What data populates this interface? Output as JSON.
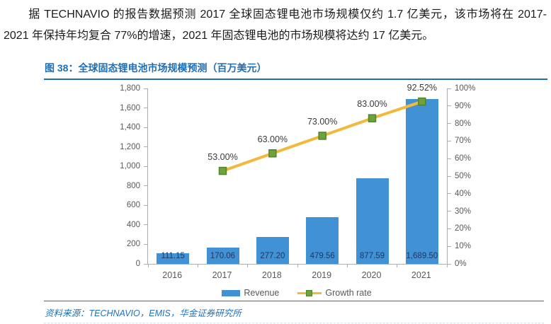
{
  "paragraph": {
    "text": "据 TECHNAVIO 的报告数据预测 2017 全球固态锂电池市场规模仅约 1.7 亿美元，该市场将在 2017-2021 年保持年均复合 77%的增速，2021 年固态锂电池的市场规模将达约 17 亿美元。"
  },
  "figure": {
    "title": "图 38：全球固态锂电池市场规模预测（百万美元）",
    "source": "资料来源：TECHNAVIO，EMIS，华金证券研究所"
  },
  "legend": {
    "revenue_label": "Revenue",
    "growth_label": "Growth rate"
  },
  "colors": {
    "accent_blue": "#1e6fb5",
    "bar": "#4191d5",
    "line": "#f2b93a",
    "marker": "#6ea33c",
    "marker_border": "#55832b",
    "axis_text": "#595959",
    "value_label": "#1f3864"
  },
  "chart_data": {
    "type": "bar",
    "subtype": "bar-line combo",
    "title": "全球固态锂电池市场规模预测（百万美元）",
    "categories": [
      "2016",
      "2017",
      "2018",
      "2019",
      "2020",
      "2021"
    ],
    "series": [
      {
        "name": "Revenue",
        "type": "bar",
        "axis": "left",
        "values": [
          111.15,
          170.06,
          277.2,
          479.56,
          877.59,
          1689.5
        ],
        "labels": [
          "111.15",
          "170.06",
          "277.20",
          "479.56",
          "877.59",
          "1,689.50"
        ]
      },
      {
        "name": "Growth rate",
        "type": "line",
        "axis": "right",
        "values": [
          null,
          53.0,
          63.0,
          73.0,
          83.0,
          92.52
        ],
        "labels": [
          null,
          "53.00%",
          "63.00%",
          "73.00%",
          "83.00%",
          "92.52%"
        ]
      }
    ],
    "left_axis": {
      "min": 0,
      "max": 1800,
      "step": 200
    },
    "right_axis": {
      "min": 0,
      "max": 100,
      "step": 10,
      "suffix": "%"
    },
    "grid": false,
    "legend_position": "bottom"
  }
}
